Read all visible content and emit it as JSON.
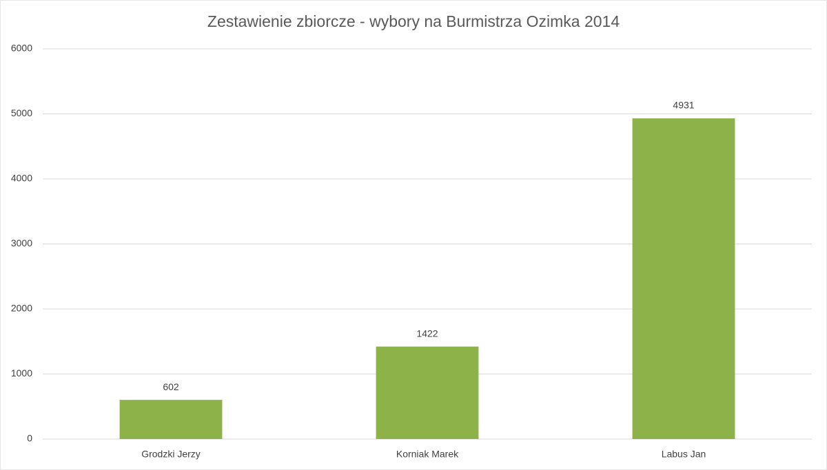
{
  "chart_data": {
    "type": "bar",
    "title": "Zestawienie zbiorcze - wybory na Burmistrza Ozimka 2014",
    "categories": [
      "Grodzki Jerzy",
      "Korniak Marek",
      "Labus Jan"
    ],
    "values": [
      602,
      1422,
      4931
    ],
    "color": "#8db24a",
    "ylim": [
      0,
      6000
    ],
    "yticks": [
      0,
      1000,
      2000,
      3000,
      4000,
      5000,
      6000
    ],
    "grid": true
  }
}
